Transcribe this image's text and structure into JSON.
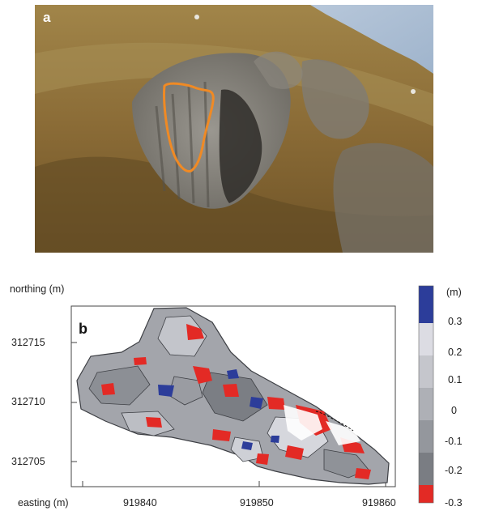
{
  "panel_a": {
    "label": "a"
  },
  "panel_b": {
    "label": "b",
    "y_axis_label": "northing (m)",
    "x_axis_label": "easting (m)",
    "y_ticks": [
      "312715",
      "312710",
      "312705"
    ],
    "x_ticks": [
      "919840",
      "919850",
      "919860"
    ],
    "colorbar": {
      "unit": "(m)",
      "labels": [
        "0.3",
        "0.2",
        "0.1",
        "0",
        "-0.1",
        "-0.2",
        "-0.3"
      ],
      "colors": [
        "#2c3d9a",
        "#dcdce3",
        "#c5c6cc",
        "#aeb0b6",
        "#94979d",
        "#7a7d83",
        "#e32a25"
      ]
    }
  },
  "chart_data": {
    "type": "heatmap",
    "xlabel": "easting (m)",
    "ylabel": "northing (m)",
    "x_ticks": [
      919840,
      919850,
      919860
    ],
    "y_ticks": [
      312705,
      312710,
      312715
    ],
    "xlim": [
      919840,
      919860
    ],
    "ylim": [
      312705,
      312715
    ],
    "color_levels": [
      -0.3,
      -0.2,
      -0.1,
      0,
      0.1,
      0.2,
      0.3
    ],
    "unit": "(m)"
  }
}
